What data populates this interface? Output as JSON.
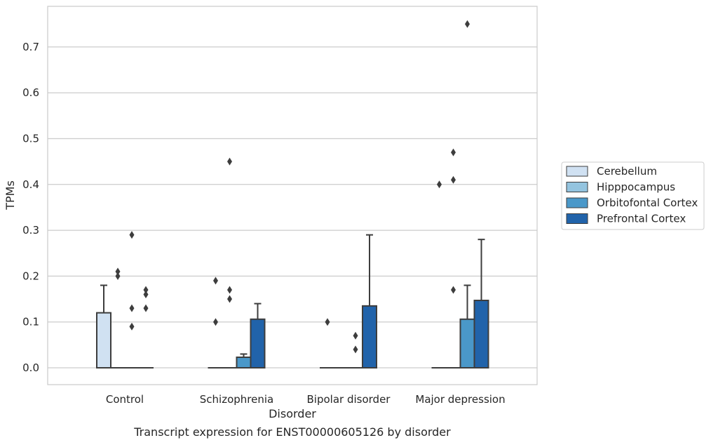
{
  "chart_data": {
    "type": "box",
    "title": "",
    "caption": "Transcript expression for ENST00000605126 by disorder",
    "xlabel": "Disorder",
    "ylabel": "TPMs",
    "ylim": [
      -0.036,
      0.79
    ],
    "yticks": [
      "0.0",
      "0.1",
      "0.2",
      "0.3",
      "0.4",
      "0.5",
      "0.6",
      "0.7"
    ],
    "ytick_values": [
      0,
      0.1,
      0.2,
      0.3,
      0.4,
      0.5,
      0.6,
      0.7
    ],
    "grid": true,
    "legend_position": "right",
    "categories": [
      "Control",
      "Schizophrenia",
      "Bipolar disorder",
      "Major depression"
    ],
    "series": [
      {
        "name": "Cerebellum",
        "color": "#d0e1f2",
        "boxes": [
          {
            "q1": 0,
            "median": 0,
            "q3": 0.12,
            "whisker_low": 0,
            "whisker_high": 0.18,
            "outliers": []
          },
          {
            "q1": 0,
            "median": 0,
            "q3": 0,
            "whisker_low": 0,
            "whisker_high": 0,
            "outliers": [
              0.1,
              0.19
            ]
          },
          {
            "q1": 0,
            "median": 0,
            "q3": 0,
            "whisker_low": 0,
            "whisker_high": 0,
            "outliers": [
              0.1
            ]
          },
          {
            "q1": 0,
            "median": 0,
            "q3": 0,
            "whisker_low": 0,
            "whisker_high": 0,
            "outliers": [
              0.4
            ]
          }
        ]
      },
      {
        "name": "Hipppocampus",
        "color": "#94c4df",
        "boxes": [
          {
            "q1": 0,
            "median": 0,
            "q3": 0,
            "whisker_low": 0,
            "whisker_high": 0,
            "outliers": [
              0.2,
              0.21
            ]
          },
          {
            "q1": 0,
            "median": 0,
            "q3": 0,
            "whisker_low": 0,
            "whisker_high": 0,
            "outliers": [
              0.45,
              0.17,
              0.15
            ]
          },
          {
            "q1": 0,
            "median": 0,
            "q3": 0,
            "whisker_low": 0,
            "whisker_high": 0,
            "outliers": []
          },
          {
            "q1": 0,
            "median": 0,
            "q3": 0,
            "whisker_low": 0,
            "whisker_high": 0,
            "outliers": [
              0.47,
              0.41,
              0.17
            ]
          }
        ]
      },
      {
        "name": "Orbitofontal Cortex",
        "color": "#4a98c9",
        "boxes": [
          {
            "q1": 0,
            "median": 0,
            "q3": 0,
            "whisker_low": 0,
            "whisker_high": 0,
            "outliers": [
              0.29,
              0.13,
              0.09
            ]
          },
          {
            "q1": 0,
            "median": 0,
            "q3": 0.023,
            "whisker_low": 0,
            "whisker_high": 0.03,
            "outliers": []
          },
          {
            "q1": 0,
            "median": 0,
            "q3": 0,
            "whisker_low": 0,
            "whisker_high": 0,
            "outliers": [
              0.07,
              0.04
            ]
          },
          {
            "q1": 0,
            "median": 0,
            "q3": 0.106,
            "whisker_low": 0,
            "whisker_high": 0.18,
            "outliers": [
              0.75
            ]
          }
        ]
      },
      {
        "name": "Prefrontal Cortex",
        "color": "#2163aa",
        "boxes": [
          {
            "q1": 0,
            "median": 0,
            "q3": 0,
            "whisker_low": 0,
            "whisker_high": 0,
            "outliers": [
              0.17,
              0.16,
              0.13
            ]
          },
          {
            "q1": 0,
            "median": 0,
            "q3": 0.106,
            "whisker_low": 0,
            "whisker_high": 0.14,
            "outliers": []
          },
          {
            "q1": 0,
            "median": 0,
            "q3": 0.135,
            "whisker_low": 0,
            "whisker_high": 0.29,
            "outliers": []
          },
          {
            "q1": 0,
            "median": 0,
            "q3": 0.147,
            "whisker_low": 0,
            "whisker_high": 0.28,
            "outliers": []
          }
        ]
      }
    ]
  }
}
